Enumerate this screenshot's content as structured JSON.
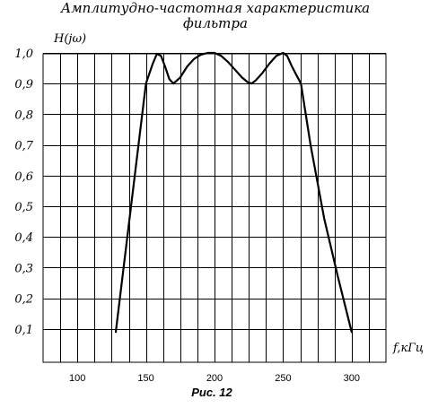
{
  "chart_data": {
    "type": "line",
    "title_line1": "Амплитудно-частотная характеристика",
    "title_line2": "фильтра",
    "ylabel": "H(jω)",
    "xlabel": "f,кГц",
    "caption": "Рис. 12",
    "x_ticks": [
      "100",
      "150",
      "200",
      "250",
      "300"
    ],
    "y_ticks": [
      "0,1",
      "0,2",
      "0,3",
      "0,4",
      "0,5",
      "0,6",
      "0,7",
      "0,8",
      "0,9",
      "1,0"
    ],
    "xlim": [
      75,
      325
    ],
    "ylim": [
      0,
      1.0
    ],
    "grid": true,
    "series": [
      {
        "x": [
          128,
          150,
          155,
          158,
          161,
          164,
          167,
          170,
          175,
          180,
          185,
          190,
          195,
          200,
          205,
          210,
          215,
          220,
          224,
          227,
          230,
          235,
          240,
          245,
          250,
          253,
          256,
          260,
          263,
          270,
          280,
          290,
          300
        ],
        "y": [
          0.09,
          0.9,
          0.965,
          0.997,
          0.99,
          0.955,
          0.915,
          0.9,
          0.92,
          0.955,
          0.98,
          0.994,
          1.0,
          1.0,
          0.99,
          0.97,
          0.945,
          0.92,
          0.905,
          0.9,
          0.91,
          0.935,
          0.965,
          0.99,
          1.0,
          0.99,
          0.96,
          0.925,
          0.9,
          0.7,
          0.46,
          0.27,
          0.09
        ]
      }
    ]
  }
}
